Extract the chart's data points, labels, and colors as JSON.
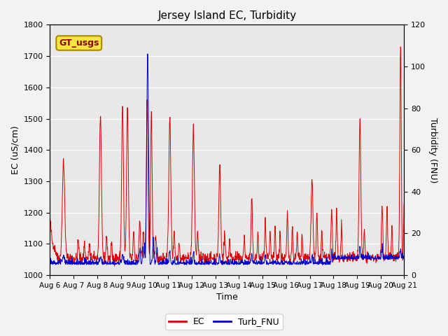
{
  "title": "Jersey Island EC, Turbidity",
  "xlabel": "Time",
  "ylabel_left": "EC (uS/cm)",
  "ylabel_right": "Turbidity (FNU)",
  "ec_ylim": [
    1000,
    1800
  ],
  "turb_ylim": [
    0,
    120
  ],
  "fig_bg_color": "#f2f2f2",
  "plot_bg_color": "#e8e8e8",
  "ec_color": "#dd0000",
  "turb_color": "#0000cc",
  "legend_ec": "EC",
  "legend_turb": "Turb_FNU",
  "annotation_text": "GT_usgs",
  "annotation_bg": "#f5e642",
  "annotation_border": "#aa8800",
  "title_fontsize": 11,
  "axis_label_fontsize": 9,
  "tick_fontsize": 8,
  "legend_fontsize": 9,
  "xtick_labels": [
    "Aug 6",
    "Aug 7",
    "Aug 8",
    "Aug 9",
    "Aug 10",
    "Aug 11",
    "Aug 12",
    "Aug 13",
    "Aug 14",
    "Aug 15",
    "Aug 16",
    "Aug 17",
    "Aug 18",
    "Aug 19",
    "Aug 20",
    "Aug 21"
  ],
  "xtick_positions": [
    0,
    96,
    192,
    288,
    384,
    480,
    576,
    672,
    768,
    864,
    960,
    1056,
    1152,
    1248,
    1344,
    1440
  ]
}
